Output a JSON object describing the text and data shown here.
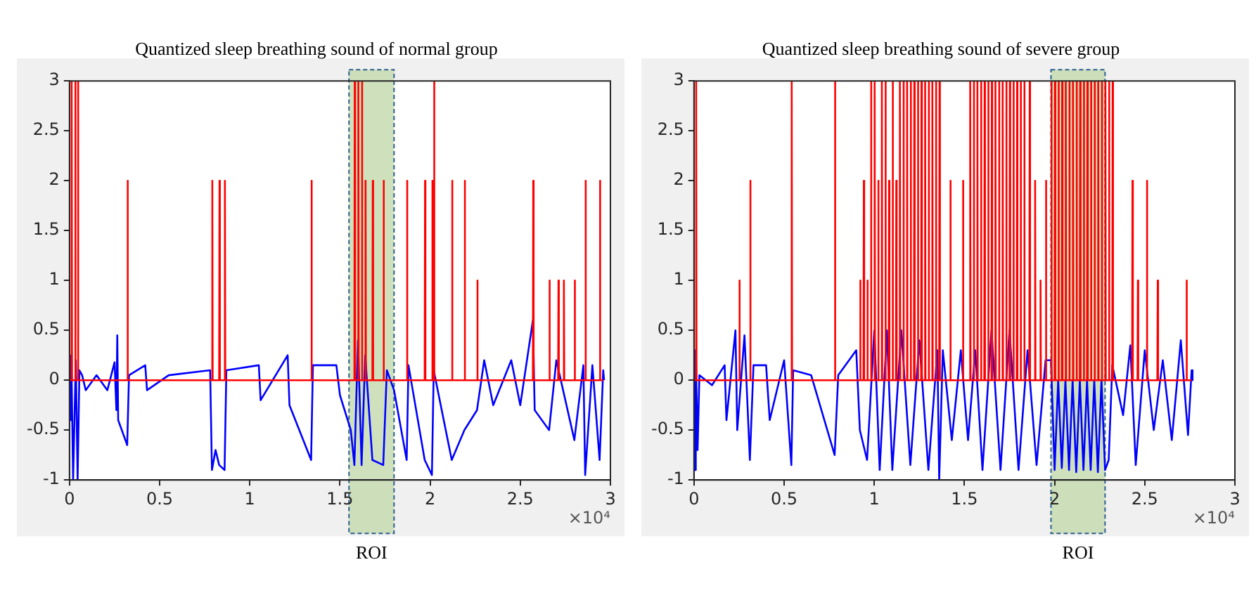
{
  "chart_data": [
    {
      "type": "line",
      "title": "Quantized sleep breathing sound of normal group",
      "marker": "none",
      "grid": false,
      "legend": false,
      "xlim": [
        0,
        3
      ],
      "xticks": [
        0,
        0.5,
        1,
        1.5,
        2,
        2.5,
        3
      ],
      "ylim": [
        -1,
        3
      ],
      "yticks": [
        -1,
        -0.5,
        0,
        0.5,
        1,
        1.5,
        2,
        2.5,
        3
      ],
      "annotations": [
        "×10⁴"
      ],
      "bands": [
        {
          "axis": "x",
          "from": 1.55,
          "to": 1.8,
          "label": "ROI",
          "color": "#c5dcb0"
        }
      ],
      "series": [
        {
          "color": "#0000ff",
          "x": [
            0,
            0.005,
            0.01,
            0.02,
            0.035,
            0.045,
            0.055,
            0.07,
            0.09,
            0.15,
            0.21,
            0.25,
            0.26,
            0.265,
            0.27,
            0.32,
            0.33,
            0.42,
            0.43,
            0.55,
            0.78,
            0.79,
            0.81,
            0.83,
            0.86,
            0.87,
            1.05,
            1.06,
            1.21,
            1.22,
            1.34,
            1.35,
            1.48,
            1.5,
            1.56,
            1.58,
            1.6,
            1.62,
            1.64,
            1.68,
            1.74,
            1.76,
            1.8,
            1.87,
            1.88,
            1.97,
            2.01,
            2.02,
            2.12,
            2.19,
            2.26,
            2.3,
            2.35,
            2.45,
            2.5,
            2.57,
            2.58,
            2.66,
            2.7,
            2.8,
            2.85,
            2.86,
            2.9,
            2.94,
            2.96,
            2.965
          ],
          "values": [
            0,
            -0.4,
            0.25,
            -1,
            0.2,
            -1,
            0.1,
            0.05,
            -0.1,
            0.05,
            -0.1,
            0.18,
            -0.3,
            0.45,
            -0.4,
            -0.65,
            0.05,
            0.15,
            -0.1,
            0.05,
            0.1,
            -0.9,
            -0.7,
            -0.85,
            -0.9,
            0.1,
            0.15,
            -0.2,
            0.25,
            -0.25,
            -0.8,
            0.15,
            0.15,
            -0.15,
            -0.5,
            -0.85,
            0.4,
            -0.85,
            0.25,
            -0.8,
            -0.85,
            0.1,
            -0.1,
            -0.8,
            0.15,
            -0.8,
            -0.95,
            0.1,
            -0.8,
            -0.5,
            -0.3,
            0.2,
            -0.25,
            0.2,
            -0.25,
            0.6,
            -0.3,
            -0.5,
            0.2,
            -0.6,
            0.15,
            -0.95,
            0.15,
            -0.8,
            0.1,
            0
          ]
        },
        {
          "color": "#ff0000",
          "x": [
            0,
            0.01,
            0.012,
            0.014,
            0.03,
            0.032,
            0.034,
            0.045,
            0.047,
            0.049,
            0.32,
            0.322,
            0.324,
            0.79,
            0.792,
            0.794,
            0.83,
            0.832,
            0.834,
            0.86,
            0.862,
            0.864,
            1.34,
            1.342,
            1.344,
            1.58,
            1.582,
            1.584,
            1.6,
            1.602,
            1.604,
            1.62,
            1.622,
            1.624,
            1.64,
            1.642,
            1.644,
            1.68,
            1.682,
            1.684,
            1.74,
            1.742,
            1.744,
            1.87,
            1.872,
            1.874,
            1.97,
            1.972,
            1.974,
            2.01,
            2.012,
            2.014,
            2.02,
            2.022,
            2.024,
            2.12,
            2.122,
            2.124,
            2.19,
            2.192,
            2.194,
            2.26,
            2.262,
            2.264,
            2.57,
            2.572,
            2.574,
            2.66,
            2.662,
            2.664,
            2.71,
            2.712,
            2.714,
            2.74,
            2.742,
            2.744,
            2.8,
            2.802,
            2.804,
            2.86,
            2.862,
            2.864,
            2.94,
            2.942,
            2.944,
            2.96
          ],
          "values": [
            0,
            0,
            3,
            0,
            0,
            3,
            0,
            0,
            3,
            0,
            0,
            2,
            0,
            0,
            2,
            0,
            0,
            2,
            0,
            0,
            2,
            0,
            0,
            2,
            0,
            0,
            3,
            0,
            0,
            3,
            0,
            0,
            3,
            0,
            0,
            2,
            0,
            0,
            2,
            0,
            0,
            2,
            0,
            0,
            2,
            0,
            0,
            2,
            0,
            0,
            2,
            0,
            0,
            3,
            0,
            0,
            2,
            0,
            0,
            2,
            0,
            0,
            1,
            0,
            0,
            2,
            0,
            0,
            1,
            0,
            0,
            1,
            0,
            0,
            1,
            0,
            0,
            1,
            0,
            0,
            2,
            0,
            0,
            2,
            0,
            0
          ]
        }
      ]
    },
    {
      "type": "line",
      "title": "Quantized sleep breathing sound of severe group",
      "marker": "none",
      "grid": false,
      "legend": false,
      "xlim": [
        0,
        3
      ],
      "xticks": [
        0,
        0.5,
        1,
        1.5,
        2,
        2.5,
        3
      ],
      "ylim": [
        -1,
        3
      ],
      "yticks": [
        -1,
        -0.5,
        0,
        0.5,
        1,
        1.5,
        2,
        2.5,
        3
      ],
      "annotations": [
        "×10⁴"
      ],
      "bands": [
        {
          "axis": "x",
          "from": 1.98,
          "to": 2.28,
          "label": "ROI",
          "color": "#c5dcb0"
        }
      ],
      "series": [
        {
          "color": "#0000ff",
          "x": [
            0,
            0.005,
            0.01,
            0.02,
            0.03,
            0.1,
            0.17,
            0.18,
            0.23,
            0.24,
            0.28,
            0.31,
            0.33,
            0.4,
            0.42,
            0.5,
            0.54,
            0.55,
            0.65,
            0.78,
            0.8,
            0.9,
            0.92,
            0.96,
            1.0,
            1.03,
            1.07,
            1.1,
            1.15,
            1.2,
            1.25,
            1.3,
            1.35,
            1.36,
            1.38,
            1.43,
            1.48,
            1.52,
            1.56,
            1.6,
            1.65,
            1.7,
            1.75,
            1.8,
            1.85,
            1.9,
            1.95,
            1.98,
            2.0,
            2.02,
            2.04,
            2.06,
            2.08,
            2.1,
            2.12,
            2.14,
            2.16,
            2.18,
            2.2,
            2.22,
            2.24,
            2.26,
            2.28,
            2.3,
            2.32,
            2.38,
            2.42,
            2.45,
            2.5,
            2.55,
            2.6,
            2.65,
            2.7,
            2.74,
            2.76,
            2.765
          ],
          "values": [
            0,
            -0.9,
            0.3,
            -0.7,
            0.05,
            -0.05,
            0.15,
            -0.4,
            0.5,
            -0.5,
            0.45,
            -0.8,
            0.15,
            0.15,
            -0.4,
            0.2,
            -0.85,
            0.1,
            0.05,
            -0.75,
            0.05,
            0.3,
            -0.5,
            -0.8,
            0.5,
            -0.9,
            0.5,
            -0.9,
            0.5,
            -0.85,
            0.4,
            -0.9,
            0.3,
            -1,
            0.3,
            -0.6,
            0.3,
            -0.6,
            0.3,
            -0.9,
            0.5,
            -0.9,
            0.5,
            -0.9,
            0.3,
            -0.85,
            0.2,
            0.2,
            -0.9,
            0,
            -0.88,
            0,
            -0.9,
            0,
            -0.92,
            0,
            -0.9,
            0,
            -0.9,
            0,
            -0.92,
            0,
            -0.9,
            -0.8,
            0.15,
            -0.35,
            0.35,
            -0.85,
            0.3,
            -0.5,
            0.2,
            -0.6,
            0.4,
            -0.55,
            0.1,
            0
          ]
        },
        {
          "color": "#ff0000",
          "x": [
            0,
            0.01,
            0.012,
            0.014,
            0.25,
            0.252,
            0.254,
            0.31,
            0.312,
            0.314,
            0.54,
            0.542,
            0.544,
            0.78,
            0.782,
            0.784,
            0.92,
            0.922,
            0.924,
            0.94,
            0.942,
            0.944,
            0.96,
            0.962,
            0.964,
            0.98,
            0.982,
            0.984,
            1.0,
            1.002,
            1.004,
            1.02,
            1.022,
            1.024,
            1.04,
            1.042,
            1.044,
            1.06,
            1.062,
            1.064,
            1.08,
            1.082,
            1.084,
            1.1,
            1.102,
            1.104,
            1.12,
            1.122,
            1.124,
            1.14,
            1.142,
            1.144,
            1.16,
            1.162,
            1.164,
            1.18,
            1.182,
            1.184,
            1.2,
            1.202,
            1.204,
            1.22,
            1.222,
            1.224,
            1.24,
            1.242,
            1.244,
            1.26,
            1.262,
            1.264,
            1.28,
            1.282,
            1.284,
            1.3,
            1.302,
            1.304,
            1.32,
            1.322,
            1.324,
            1.34,
            1.342,
            1.344,
            1.36,
            1.362,
            1.364,
            1.42,
            1.422,
            1.424,
            1.49,
            1.492,
            1.494,
            1.53,
            1.532,
            1.534,
            1.55,
            1.552,
            1.554,
            1.57,
            1.572,
            1.574,
            1.59,
            1.592,
            1.594,
            1.61,
            1.612,
            1.614,
            1.63,
            1.632,
            1.634,
            1.65,
            1.652,
            1.654,
            1.67,
            1.672,
            1.674,
            1.69,
            1.692,
            1.694,
            1.71,
            1.712,
            1.714,
            1.73,
            1.732,
            1.734,
            1.75,
            1.752,
            1.754,
            1.77,
            1.772,
            1.774,
            1.79,
            1.792,
            1.794,
            1.81,
            1.812,
            1.814,
            1.83,
            1.832,
            1.834,
            1.86,
            1.862,
            1.864,
            1.89,
            1.892,
            1.894,
            1.92,
            1.922,
            1.924,
            1.95,
            1.952,
            1.954,
            1.98,
            1.982,
            1.984,
            2.0,
            2.002,
            2.004,
            2.02,
            2.022,
            2.024,
            2.04,
            2.042,
            2.044,
            2.06,
            2.062,
            2.064,
            2.08,
            2.082,
            2.084,
            2.1,
            2.102,
            2.104,
            2.12,
            2.122,
            2.124,
            2.14,
            2.142,
            2.144,
            2.16,
            2.162,
            2.164,
            2.18,
            2.182,
            2.184,
            2.2,
            2.202,
            2.204,
            2.22,
            2.222,
            2.224,
            2.24,
            2.242,
            2.244,
            2.26,
            2.262,
            2.264,
            2.28,
            2.282,
            2.284,
            2.3,
            2.302,
            2.304,
            2.32,
            2.322,
            2.324,
            2.43,
            2.432,
            2.434,
            2.46,
            2.462,
            2.464,
            2.51,
            2.512,
            2.514,
            2.57,
            2.572,
            2.574,
            2.73,
            2.732,
            2.734,
            2.76
          ],
          "values": [
            0,
            0,
            3,
            0,
            0,
            1,
            0,
            0,
            2,
            0,
            0,
            3,
            0,
            0,
            3,
            0,
            0,
            1,
            0,
            0,
            2,
            0,
            0,
            1,
            0,
            0,
            3,
            0,
            0,
            3,
            0,
            0,
            2,
            0,
            0,
            3,
            0,
            0,
            3,
            0,
            0,
            2,
            0,
            0,
            3,
            0,
            0,
            2,
            0,
            0,
            3,
            0,
            0,
            3,
            0,
            0,
            3,
            0,
            0,
            3,
            0,
            0,
            3,
            0,
            0,
            3,
            0,
            0,
            3,
            0,
            0,
            3,
            0,
            0,
            3,
            0,
            0,
            3,
            0,
            0,
            3,
            0,
            0,
            3,
            0,
            0,
            2,
            0,
            0,
            2,
            0,
            0,
            3,
            0,
            0,
            3,
            0,
            0,
            3,
            0,
            0,
            3,
            0,
            0,
            3,
            0,
            0,
            3,
            0,
            0,
            3,
            0,
            0,
            3,
            0,
            0,
            3,
            0,
            0,
            3,
            0,
            0,
            3,
            0,
            0,
            3,
            0,
            0,
            3,
            0,
            0,
            3,
            0,
            0,
            3,
            0,
            0,
            3,
            0,
            0,
            3,
            0,
            0,
            2,
            0,
            0,
            1,
            0,
            0,
            2,
            0,
            0,
            3,
            0,
            0,
            3,
            0,
            0,
            3,
            0,
            0,
            3,
            0,
            0,
            3,
            0,
            0,
            3,
            0,
            0,
            3,
            0,
            0,
            3,
            0,
            0,
            3,
            0,
            0,
            3,
            0,
            0,
            3,
            0,
            0,
            3,
            0,
            0,
            3,
            0,
            0,
            3,
            0,
            0,
            3,
            0,
            0,
            3,
            0,
            0,
            3,
            0,
            0,
            3,
            0,
            0,
            2,
            0,
            0,
            1,
            0,
            0,
            2,
            0,
            0,
            1,
            0,
            0,
            1,
            0,
            0
          ]
        }
      ]
    }
  ]
}
